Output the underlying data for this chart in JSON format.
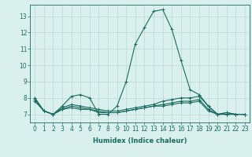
{
  "xlabel": "Humidex (Indice chaleur)",
  "bg_color": "#daf0ed",
  "grid_color": "#b8d8d4",
  "line_color": "#1a6b60",
  "x_values": [
    0,
    1,
    2,
    3,
    4,
    5,
    6,
    7,
    8,
    9,
    10,
    11,
    12,
    13,
    14,
    15,
    16,
    17,
    18,
    19,
    20,
    21,
    22,
    23
  ],
  "series": [
    [
      8.0,
      7.2,
      7.0,
      7.5,
      8.1,
      8.2,
      8.0,
      7.0,
      7.0,
      7.5,
      9.0,
      11.3,
      12.3,
      13.3,
      13.4,
      12.2,
      10.3,
      8.5,
      8.2,
      7.5,
      7.0,
      7.1,
      7.0,
      7.0
    ],
    [
      7.8,
      7.2,
      7.0,
      7.4,
      7.6,
      7.5,
      7.4,
      7.3,
      7.2,
      7.2,
      7.3,
      7.4,
      7.5,
      7.6,
      7.8,
      7.9,
      8.0,
      8.0,
      8.1,
      7.5,
      7.0,
      7.1,
      7.0,
      7.0
    ],
    [
      7.9,
      7.2,
      7.0,
      7.3,
      7.5,
      7.4,
      7.3,
      7.2,
      7.1,
      7.1,
      7.2,
      7.3,
      7.4,
      7.5,
      7.6,
      7.7,
      7.8,
      7.8,
      7.9,
      7.3,
      7.0,
      7.0,
      7.0,
      7.0
    ],
    [
      8.0,
      7.2,
      7.0,
      7.3,
      7.4,
      7.3,
      7.3,
      7.1,
      7.1,
      7.1,
      7.2,
      7.3,
      7.4,
      7.5,
      7.5,
      7.6,
      7.7,
      7.7,
      7.8,
      7.2,
      7.0,
      7.0,
      7.0,
      7.0
    ]
  ],
  "ylim": [
    6.5,
    13.7
  ],
  "yticks": [
    7,
    8,
    9,
    10,
    11,
    12,
    13
  ],
  "xticks": [
    0,
    1,
    2,
    3,
    4,
    5,
    6,
    7,
    8,
    9,
    10,
    11,
    12,
    13,
    14,
    15,
    16,
    17,
    18,
    19,
    20,
    21,
    22,
    23
  ],
  "tick_fontsize": 5.5,
  "xlabel_fontsize": 6.0,
  "marker": "+",
  "markersize": 3,
  "linewidth": 0.8
}
